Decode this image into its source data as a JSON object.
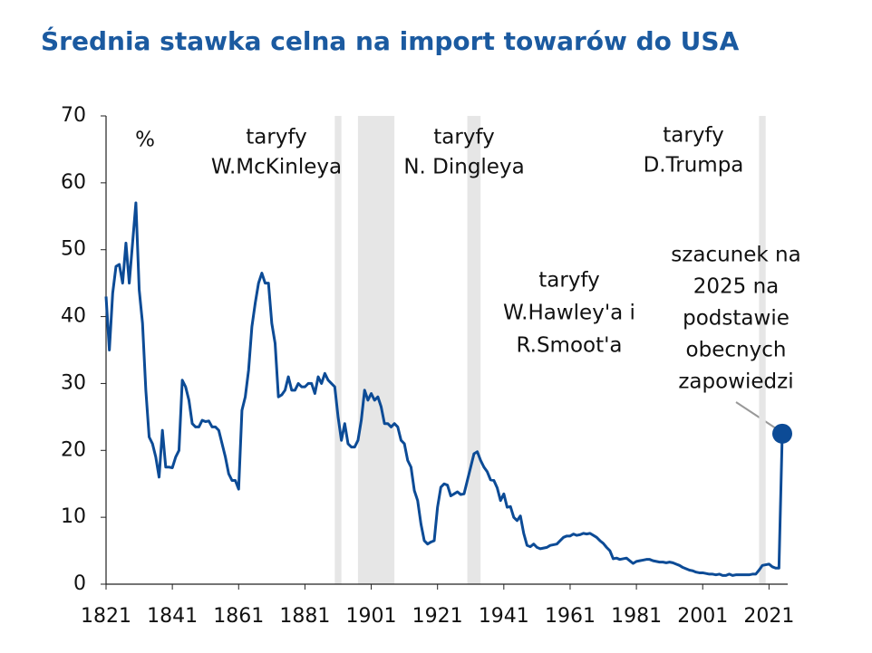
{
  "chart_data": {
    "type": "line",
    "title": "Średnia stawka celna na import towarów do USA",
    "y_unit": "%",
    "x": [
      1821,
      1822,
      1823,
      1824,
      1825,
      1826,
      1827,
      1828,
      1829,
      1830,
      1831,
      1832,
      1833,
      1834,
      1835,
      1836,
      1837,
      1838,
      1839,
      1840,
      1841,
      1842,
      1843,
      1844,
      1845,
      1846,
      1847,
      1848,
      1849,
      1850,
      1851,
      1852,
      1853,
      1854,
      1855,
      1856,
      1857,
      1858,
      1859,
      1860,
      1861,
      1862,
      1863,
      1864,
      1865,
      1866,
      1867,
      1868,
      1869,
      1870,
      1871,
      1872,
      1873,
      1874,
      1875,
      1876,
      1877,
      1878,
      1879,
      1880,
      1881,
      1882,
      1883,
      1884,
      1885,
      1886,
      1887,
      1888,
      1889,
      1890,
      1891,
      1892,
      1893,
      1894,
      1895,
      1896,
      1897,
      1898,
      1899,
      1900,
      1901,
      1902,
      1903,
      1904,
      1905,
      1906,
      1907,
      1908,
      1909,
      1910,
      1911,
      1912,
      1913,
      1914,
      1915,
      1916,
      1917,
      1918,
      1919,
      1920,
      1921,
      1922,
      1923,
      1924,
      1925,
      1926,
      1927,
      1928,
      1929,
      1930,
      1931,
      1932,
      1933,
      1934,
      1935,
      1936,
      1937,
      1938,
      1939,
      1940,
      1941,
      1942,
      1943,
      1944,
      1945,
      1946,
      1947,
      1948,
      1949,
      1950,
      1951,
      1952,
      1953,
      1954,
      1955,
      1956,
      1957,
      1958,
      1959,
      1960,
      1961,
      1962,
      1963,
      1964,
      1965,
      1966,
      1967,
      1968,
      1969,
      1970,
      1971,
      1972,
      1973,
      1974,
      1975,
      1976,
      1977,
      1978,
      1979,
      1980,
      1981,
      1982,
      1983,
      1984,
      1985,
      1986,
      1987,
      1988,
      1989,
      1990,
      1991,
      1992,
      1993,
      1994,
      1995,
      1996,
      1997,
      1998,
      1999,
      2000,
      2001,
      2002,
      2003,
      2004,
      2005,
      2006,
      2007,
      2008,
      2009,
      2010,
      2011,
      2012,
      2013,
      2014,
      2015,
      2016,
      2017,
      2018,
      2019,
      2020,
      2021,
      2022,
      2023,
      2024,
      2025
    ],
    "series": [
      {
        "name": "Średnia stawka celna",
        "color": "#0c4b96",
        "values": [
          43,
          35,
          43.5,
          47.5,
          47.8,
          45,
          51,
          45,
          51,
          57,
          44,
          39,
          29,
          22,
          21,
          19,
          16,
          23,
          17.5,
          17.5,
          17.4,
          19,
          20,
          30.5,
          29.5,
          27.5,
          24,
          23.5,
          23.5,
          24.5,
          24.3,
          24.4,
          23.5,
          23.5,
          23,
          21,
          19,
          16.5,
          15.5,
          15.5,
          14.2,
          26,
          28,
          32,
          38.5,
          42,
          45,
          46.5,
          45,
          45,
          39,
          36,
          28,
          28.3,
          29,
          31,
          29,
          29,
          30,
          29.5,
          29.5,
          30,
          30,
          28.5,
          31,
          30,
          31.5,
          30.5,
          30,
          29.5,
          25,
          21.5,
          24,
          21,
          20.5,
          20.5,
          21.5,
          24.5,
          29,
          27.5,
          28.5,
          27.5,
          28,
          26.5,
          24,
          24,
          23.5,
          24,
          23.5,
          21.5,
          21,
          18.5,
          17.5,
          14,
          12.5,
          9,
          6.5,
          6,
          6.3,
          6.5,
          11.5,
          14.5,
          15,
          14.8,
          13.2,
          13.5,
          13.8,
          13.4,
          13.5,
          15.5,
          17.5,
          19.5,
          19.8,
          18.5,
          17.5,
          16.8,
          15.6,
          15.5,
          14.4,
          12.5,
          13.5,
          11.5,
          11.6,
          10,
          9.5,
          10.2,
          7.6,
          5.8,
          5.6,
          6,
          5.5,
          5.3,
          5.4,
          5.5,
          5.8,
          5.9,
          6,
          6.5,
          7,
          7.2,
          7.2,
          7.5,
          7.3,
          7.4,
          7.6,
          7.5,
          7.6,
          7.3,
          7,
          6.5,
          6.1,
          5.5,
          5,
          3.8,
          3.9,
          3.7,
          3.8,
          3.9,
          3.5,
          3.1,
          3.4,
          3.5,
          3.6,
          3.7,
          3.7,
          3.5,
          3.4,
          3.3,
          3.3,
          3.2,
          3.3,
          3.2,
          3,
          2.8,
          2.5,
          2.3,
          2.1,
          2,
          1.8,
          1.7,
          1.7,
          1.6,
          1.5,
          1.5,
          1.4,
          1.5,
          1.3,
          1.3,
          1.5,
          1.3,
          1.4,
          1.4,
          1.4,
          1.4,
          1.4,
          1.5,
          1.5,
          2.1,
          2.8,
          2.9,
          3,
          2.6,
          2.4,
          2.4,
          22.5
        ]
      }
    ],
    "shaded_periods": [
      [
        1890,
        1892
      ],
      [
        1897,
        1908
      ],
      [
        1930,
        1934
      ],
      [
        2018,
        2020
      ]
    ],
    "shade_color": "#e6e6e6",
    "annotations": [
      {
        "lines": [
          "taryfy",
          "W.McKinleya"
        ]
      },
      {
        "lines": [
          "taryfy",
          "N. Dingleya"
        ]
      },
      {
        "lines": [
          "taryfy",
          "D.Trumpa"
        ]
      },
      {
        "lines": [
          "taryfy",
          "W.Hawley'a i",
          "R.Smoot'a"
        ]
      },
      {
        "lines": [
          "szacunek na",
          "2025 na",
          "podstawie",
          "obecnych",
          "zapowiedzi"
        ]
      }
    ],
    "xlim": [
      1821,
      2025
    ],
    "xticks": [
      1821,
      1841,
      1861,
      1881,
      1901,
      1921,
      1941,
      1961,
      1981,
      2001,
      2021
    ],
    "ylim": [
      0,
      70
    ],
    "yticks": [
      0,
      10,
      20,
      30,
      40,
      50,
      60,
      70
    ]
  }
}
